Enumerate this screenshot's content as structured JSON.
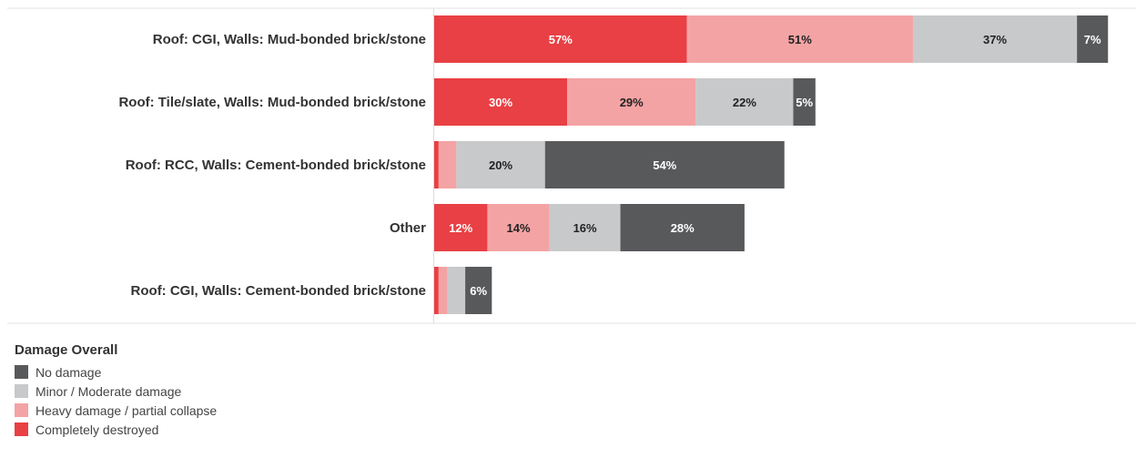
{
  "chart_data": {
    "type": "bar",
    "orientation": "horizontal",
    "stacked": true,
    "categories": [
      "Roof: CGI, Walls: Mud-bonded brick/stone",
      "Roof: Tile/slate,  Walls: Mud-bonded brick/stone",
      "Roof: RCC, Walls: Cement-bonded brick/stone",
      "Other",
      "Roof: CGI, Walls: Cement-bonded brick/stone"
    ],
    "series": [
      {
        "name": "Completely destroyed",
        "color": "#e84044",
        "values": [
          57,
          30,
          1,
          12,
          1
        ],
        "labels": [
          "57%",
          "30%",
          "",
          "12%",
          ""
        ]
      },
      {
        "name": "Heavy damage / partial collapse",
        "color": "#f4a3a4",
        "values": [
          51,
          29,
          4,
          14,
          2
        ],
        "labels": [
          "51%",
          "29%",
          "",
          "14%",
          ""
        ]
      },
      {
        "name": "Minor / Moderate damage",
        "color": "#c8c9cb",
        "values": [
          37,
          22,
          20,
          16,
          4
        ],
        "labels": [
          "37%",
          "22%",
          "20%",
          "16%",
          ""
        ]
      },
      {
        "name": "No damage",
        "color": "#58595b",
        "values": [
          7,
          5,
          54,
          28,
          6
        ],
        "labels": [
          "7%",
          "5%",
          "54%",
          "28%",
          "6%"
        ]
      }
    ],
    "xlim": [
      0,
      160
    ],
    "grid": false,
    "legend": {
      "title": "Damage Overall",
      "position": "bottom-left",
      "entries": [
        "No damage",
        "Minor / Moderate damage",
        "Heavy damage / partial collapse",
        "Completely destroyed"
      ]
    }
  }
}
